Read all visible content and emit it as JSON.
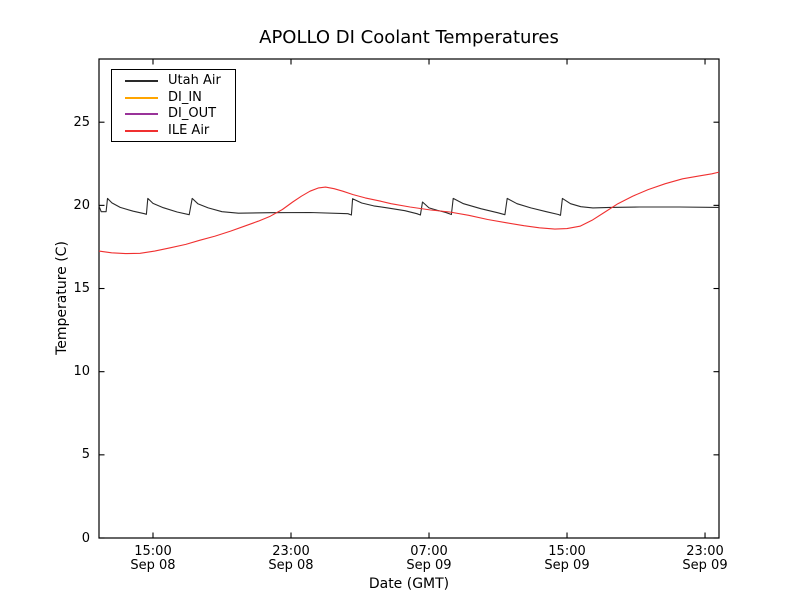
{
  "title": "APOLLO DI Coolant Temperatures",
  "xlabel": "Date (GMT)",
  "ylabel": "Temperature (C)",
  "legend": {
    "items": [
      {
        "label": "Utah Air",
        "color": "#2a2a2a"
      },
      {
        "label": "DI_IN",
        "color": "#ffa500"
      },
      {
        "label": "DI_OUT",
        "color": "#993399"
      },
      {
        "label": "ILE Air",
        "color": "#f03030"
      }
    ]
  },
  "axes": {
    "yticks": [
      "0",
      "5",
      "10",
      "15",
      "20",
      "25"
    ],
    "xticks": [
      {
        "t": 15,
        "time": "15:00",
        "date": "Sep 08"
      },
      {
        "t": 23,
        "time": "23:00",
        "date": "Sep 08"
      },
      {
        "t": 31,
        "time": "07:00",
        "date": "Sep 09"
      },
      {
        "t": 39,
        "time": "15:00",
        "date": "Sep 09"
      },
      {
        "t": 47,
        "time": "23:00",
        "date": "Sep 09"
      }
    ]
  },
  "chart_data": {
    "type": "line",
    "title": "APOLLO DI Coolant Temperatures",
    "xlabel": "Date (GMT)",
    "ylabel": "Temperature (C)",
    "x_unit": "hours since Sep 08 00:00 GMT",
    "xlim": [
      11.87,
      47.81
    ],
    "ylim": [
      0,
      28.8
    ],
    "ytick_values": [
      0,
      5,
      10,
      15,
      20,
      25
    ],
    "xtick_values": [
      15,
      23,
      31,
      39,
      47
    ],
    "grid": false,
    "legend_position": "upper left",
    "series": [
      {
        "name": "Utah Air",
        "color": "#2a2a2a",
        "points": [
          [
            11.87,
            19.97
          ],
          [
            12.0,
            19.62
          ],
          [
            12.28,
            19.62
          ],
          [
            12.36,
            20.42
          ],
          [
            12.62,
            20.15
          ],
          [
            13.1,
            19.88
          ],
          [
            13.85,
            19.65
          ],
          [
            14.5,
            19.5
          ],
          [
            14.62,
            19.46
          ],
          [
            14.7,
            20.42
          ],
          [
            15.0,
            20.12
          ],
          [
            15.6,
            19.86
          ],
          [
            16.4,
            19.6
          ],
          [
            17.1,
            19.44
          ],
          [
            17.27,
            20.42
          ],
          [
            17.6,
            20.1
          ],
          [
            18.2,
            19.85
          ],
          [
            19.0,
            19.62
          ],
          [
            19.95,
            19.53
          ],
          [
            21.8,
            19.56
          ],
          [
            24.1,
            19.57
          ],
          [
            26.3,
            19.5
          ],
          [
            26.5,
            19.42
          ],
          [
            26.57,
            20.4
          ],
          [
            27.1,
            20.14
          ],
          [
            27.8,
            19.97
          ],
          [
            28.6,
            19.85
          ],
          [
            29.6,
            19.68
          ],
          [
            30.3,
            19.5
          ],
          [
            30.5,
            19.42
          ],
          [
            30.62,
            20.2
          ],
          [
            31.0,
            19.85
          ],
          [
            31.5,
            19.7
          ],
          [
            31.95,
            19.58
          ],
          [
            32.3,
            19.45
          ],
          [
            32.4,
            20.42
          ],
          [
            33.0,
            20.1
          ],
          [
            34.0,
            19.8
          ],
          [
            35.0,
            19.55
          ],
          [
            35.4,
            19.44
          ],
          [
            35.53,
            20.42
          ],
          [
            36.1,
            20.1
          ],
          [
            36.9,
            19.85
          ],
          [
            37.8,
            19.62
          ],
          [
            38.5,
            19.45
          ],
          [
            38.62,
            19.4
          ],
          [
            38.73,
            20.42
          ],
          [
            39.2,
            20.1
          ],
          [
            39.8,
            19.92
          ],
          [
            40.5,
            19.85
          ],
          [
            41.5,
            19.88
          ],
          [
            43.2,
            19.9
          ],
          [
            45.5,
            19.9
          ],
          [
            47.81,
            19.88
          ]
        ]
      },
      {
        "name": "DI_IN",
        "color": "#ffa500",
        "points": []
      },
      {
        "name": "DI_OUT",
        "color": "#993399",
        "points": []
      },
      {
        "name": "ILE Air",
        "color": "#f03030",
        "points": [
          [
            11.87,
            17.25
          ],
          [
            12.6,
            17.15
          ],
          [
            13.4,
            17.1
          ],
          [
            14.25,
            17.12
          ],
          [
            15.1,
            17.25
          ],
          [
            16.0,
            17.45
          ],
          [
            16.9,
            17.65
          ],
          [
            17.7,
            17.9
          ],
          [
            18.6,
            18.15
          ],
          [
            19.5,
            18.45
          ],
          [
            20.3,
            18.75
          ],
          [
            21.1,
            19.05
          ],
          [
            21.8,
            19.35
          ],
          [
            22.5,
            19.75
          ],
          [
            23.1,
            20.2
          ],
          [
            23.6,
            20.55
          ],
          [
            24.1,
            20.85
          ],
          [
            24.6,
            21.05
          ],
          [
            25.0,
            21.1
          ],
          [
            25.5,
            21.0
          ],
          [
            26.0,
            20.85
          ],
          [
            26.6,
            20.65
          ],
          [
            27.3,
            20.45
          ],
          [
            28.2,
            20.25
          ],
          [
            28.8,
            20.1
          ],
          [
            29.9,
            19.9
          ],
          [
            31.1,
            19.72
          ],
          [
            32.2,
            19.6
          ],
          [
            33.3,
            19.4
          ],
          [
            34.4,
            19.15
          ],
          [
            35.5,
            18.95
          ],
          [
            36.5,
            18.78
          ],
          [
            37.4,
            18.65
          ],
          [
            38.3,
            18.57
          ],
          [
            39.0,
            18.6
          ],
          [
            39.75,
            18.75
          ],
          [
            40.45,
            19.1
          ],
          [
            41.2,
            19.6
          ],
          [
            41.95,
            20.1
          ],
          [
            42.8,
            20.55
          ],
          [
            43.7,
            20.95
          ],
          [
            44.7,
            21.3
          ],
          [
            45.7,
            21.6
          ],
          [
            46.7,
            21.78
          ],
          [
            47.4,
            21.9
          ],
          [
            47.81,
            22.0
          ]
        ]
      }
    ]
  }
}
